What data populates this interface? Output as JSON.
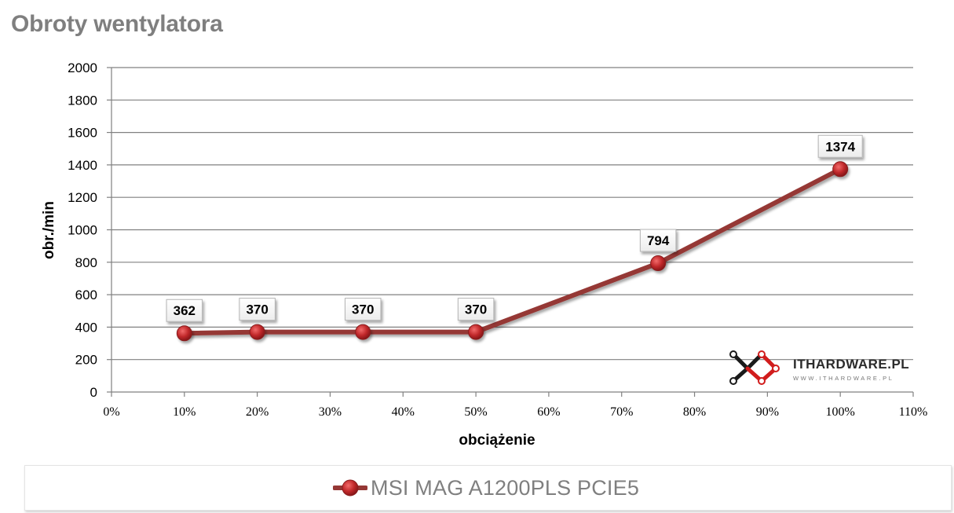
{
  "title": "Obroty wentylatora",
  "colors": {
    "series": "#953735",
    "marker": "#c0282a",
    "grid": "#808080",
    "title": "#7f7f7f"
  },
  "watermark": {
    "brand": "ITHARDWARE.PL",
    "url": "WWW.ITHARDWARE.PL"
  },
  "chart_data": {
    "type": "line",
    "title": "Obroty wentylatora",
    "xlabel": "obciążenie",
    "ylabel": "obr./min",
    "xlim": [
      0,
      110
    ],
    "ylim": [
      0,
      2000
    ],
    "xticks": [
      0,
      10,
      20,
      30,
      40,
      50,
      60,
      70,
      80,
      90,
      100,
      110
    ],
    "xtick_labels": [
      "0%",
      "10%",
      "20%",
      "30%",
      "40%",
      "50%",
      "60%",
      "70%",
      "80%",
      "90%",
      "100%",
      "110%"
    ],
    "yticks": [
      0,
      200,
      400,
      600,
      800,
      1000,
      1200,
      1400,
      1600,
      1800,
      2000
    ],
    "ytick_labels": [
      "0",
      "200",
      "400",
      "600",
      "800",
      "1000",
      "1200",
      "1400",
      "1600",
      "1800",
      "2000"
    ],
    "grid": "horizontal",
    "legend_position": "bottom",
    "series": [
      {
        "name": "MSI MAG A1200PLS PCIE5",
        "x": [
          10,
          20,
          34.5,
          50,
          75,
          100
        ],
        "y": [
          362,
          370,
          370,
          370,
          794,
          1374
        ],
        "labels": [
          "362",
          "370",
          "370",
          "370",
          "794",
          "1374"
        ]
      }
    ]
  }
}
